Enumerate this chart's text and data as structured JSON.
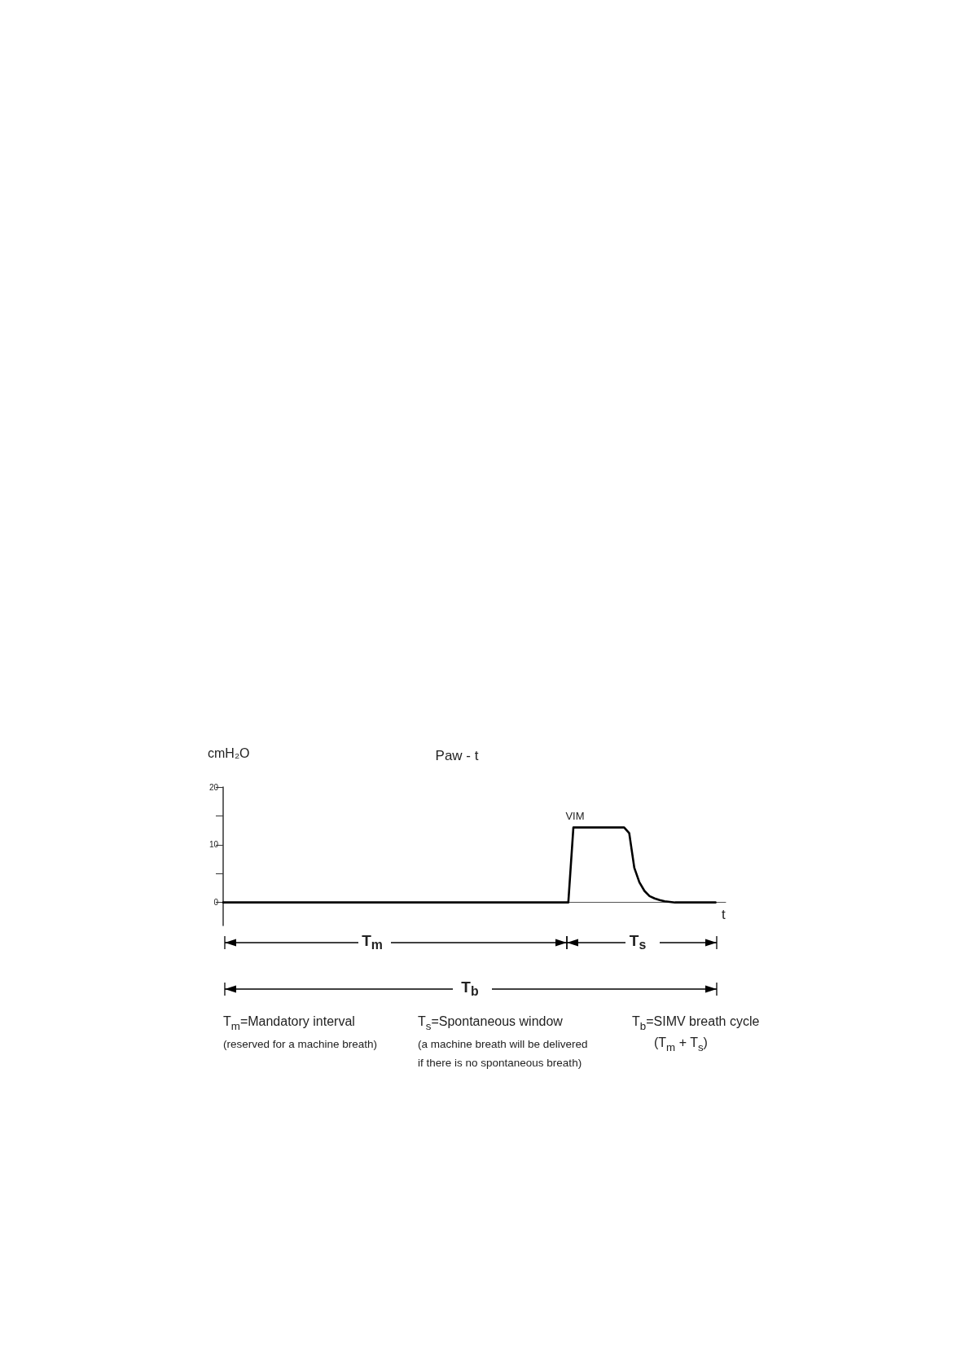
{
  "chart_data": {
    "type": "line",
    "title": "Paw - t",
    "ylabel": "cmH₂O",
    "xlabel": "t",
    "categories": [
      null,
      null,
      null,
      null,
      null,
      null,
      null,
      null,
      null,
      null,
      null,
      null,
      null,
      null,
      null,
      null,
      null,
      null,
      null,
      null,
      null,
      null,
      null,
      null,
      null,
      null,
      null,
      null,
      null,
      null,
      null,
      null,
      null,
      null,
      null,
      null,
      null,
      null,
      null,
      null,
      null,
      null,
      null,
      null,
      null,
      null,
      null,
      null,
      null,
      null,
      null,
      null,
      null,
      null,
      null,
      null,
      null,
      null,
      null,
      null,
      null,
      null,
      null,
      null,
      null,
      null,
      null,
      null,
      null,
      null,
      null,
      null,
      null,
      null,
      null,
      null,
      null,
      null,
      null,
      null,
      null,
      null,
      null,
      null,
      null,
      null,
      null,
      null,
      null,
      null,
      null,
      null,
      null,
      null,
      null,
      null,
      null,
      null,
      null,
      null
    ],
    "series": [
      {
        "color": "#000000",
        "values": [
          0,
          0,
          0,
          0,
          0,
          0,
          0,
          0,
          0,
          0,
          0,
          0,
          0,
          0,
          0,
          0,
          0,
          0,
          0,
          0,
          0,
          0,
          0,
          0,
          0,
          0,
          0,
          0,
          0,
          0,
          0,
          0,
          0,
          0,
          0,
          0,
          0,
          0,
          0,
          0,
          0,
          0,
          0,
          0,
          0,
          0,
          0,
          0,
          0,
          0,
          0,
          0,
          0,
          0,
          0,
          0,
          0,
          0,
          0,
          0,
          0,
          0,
          0,
          0,
          0,
          0,
          0,
          0,
          0,
          13,
          13,
          13,
          13,
          13,
          13,
          13,
          13,
          13,
          13,
          13,
          12,
          6,
          3.5,
          2,
          1.1,
          0.7,
          0.4,
          0.2,
          0.1,
          0,
          0,
          0,
          0,
          0,
          0,
          0,
          0,
          0,
          null,
          null
        ]
      }
    ],
    "ylim": [
      -4,
      20
    ],
    "yticks": [
      20,
      {
        "value": 15,
        "label": null
      },
      10,
      {
        "value": 5,
        "label": null
      },
      0
    ],
    "tick_labels": "y",
    "line_style": "solid",
    "annotations": [
      "VIM",
      "T$_{m}$",
      "T$_{s}$",
      "T$_{b}$",
      "T$_{m}$=Mandatory interval",
      "(reserved for a machine breath)",
      "T$_{s}$=Spontaneous window",
      "(a machine breath will be delivered",
      "if there is no spontaneous breath)",
      "T$_{b}$=SIMV breath cycle",
      "(T$_{m}$ + T$_{s}$)"
    ]
  }
}
